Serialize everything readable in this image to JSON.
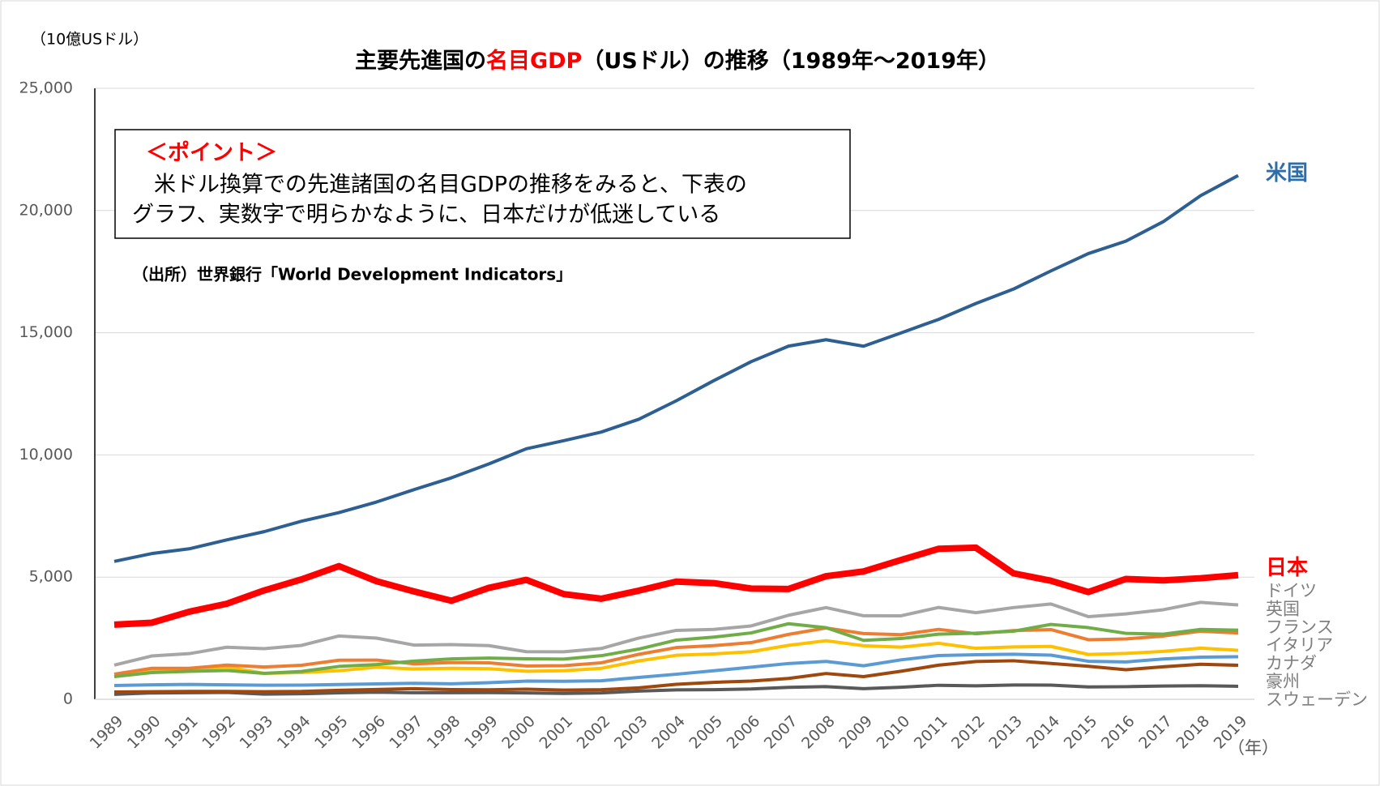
{
  "chart_data": {
    "type": "line",
    "unit_label": "（10億USドル）",
    "title": {
      "before": "主要先進国の",
      "highlight": "名目GDP",
      "after": "（USドル）の推移（1989年～2019年）"
    },
    "annotation": {
      "heading": "＜ポイント＞",
      "lines": [
        "　米ドル換算での先進諸国の名目GDPの推移をみると、下表の",
        "グラフ、実数字で明らかなように、日本だけが低迷している"
      ]
    },
    "source": "（出所）世界銀行「World Development Indicators」",
    "x_unit": "（年）",
    "categories": [
      "1989",
      "1990",
      "1991",
      "1992",
      "1993",
      "1994",
      "1995",
      "1996",
      "1997",
      "1998",
      "1999",
      "2000",
      "2001",
      "2002",
      "2003",
      "2004",
      "2005",
      "2006",
      "2007",
      "2008",
      "2009",
      "2010",
      "2011",
      "2012",
      "2013",
      "2014",
      "2015",
      "2016",
      "2017",
      "2018",
      "2019"
    ],
    "ylim": [
      0,
      25000
    ],
    "yticks": [
      {
        "value": 0,
        "label": "0"
      },
      {
        "value": 5000,
        "label": "5,000"
      },
      {
        "value": 10000,
        "label": "10,000"
      },
      {
        "value": 15000,
        "label": "15,000"
      },
      {
        "value": 20000,
        "label": "20,000"
      },
      {
        "value": 25000,
        "label": "25,000"
      }
    ],
    "grid": true,
    "series": [
      {
        "name": "米国",
        "color": "#2e5f92",
        "label_color": "#2e6ea8",
        "width": 4,
        "values": [
          5642,
          5963,
          6158,
          6520,
          6859,
          7287,
          7640,
          8073,
          8578,
          9063,
          9631,
          10252,
          10582,
          10936,
          11458,
          12214,
          13037,
          13815,
          14452,
          14713,
          14449,
          14992,
          15543,
          16197,
          16785,
          17527,
          18238,
          18745,
          19543,
          20612,
          21433
        ]
      },
      {
        "name": "日本",
        "color": "#ff0000",
        "label_color": "#ff0000",
        "width": 8,
        "values": [
          3054,
          3133,
          3584,
          3909,
          4454,
          4907,
          5449,
          4833,
          4415,
          4033,
          4562,
          4888,
          4304,
          4115,
          4446,
          4815,
          4755,
          4530,
          4515,
          5038,
          5231,
          5700,
          6157,
          6203,
          5156,
          4850,
          4389,
          4923,
          4867,
          4955,
          5082
        ]
      },
      {
        "name": "ドイツ",
        "color": "#a6a6a6",
        "label_color": "#7f7f7f",
        "width": 4,
        "values": [
          1399,
          1772,
          1868,
          2131,
          2071,
          2206,
          2592,
          2504,
          2219,
          2240,
          2197,
          1948,
          1945,
          2079,
          2505,
          2820,
          2861,
          3002,
          3440,
          3752,
          3418,
          3417,
          3758,
          3544,
          3753,
          3899,
          3382,
          3495,
          3665,
          3968,
          3861
        ]
      },
      {
        "name": "英国",
        "color": "#70ad47",
        "label_color": "#7f7f7f",
        "width": 4,
        "values": [
          926,
          1093,
          1142,
          1179,
          1061,
          1140,
          1345,
          1420,
          1564,
          1653,
          1688,
          1658,
          1644,
          1785,
          2055,
          2422,
          2544,
          2717,
          3093,
          2929,
          2412,
          2485,
          2664,
          2707,
          2785,
          3065,
          2933,
          2700,
          2666,
          2861,
          2829
        ]
      },
      {
        "name": "フランス",
        "color": "#ed7d31",
        "label_color": "#7f7f7f",
        "width": 4,
        "values": [
          1030,
          1269,
          1269,
          1401,
          1323,
          1394,
          1601,
          1606,
          1452,
          1503,
          1493,
          1362,
          1377,
          1494,
          1841,
          2116,
          2196,
          2320,
          2657,
          2918,
          2690,
          2643,
          2862,
          2683,
          2811,
          2852,
          2438,
          2471,
          2588,
          2787,
          2716
        ]
      },
      {
        "name": "イタリア",
        "color": "#ffc000",
        "label_color": "#7f7f7f",
        "width": 4,
        "values": [
          927,
          1182,
          1246,
          1323,
          1061,
          1095,
          1171,
          1312,
          1242,
          1270,
          1252,
          1147,
          1167,
          1267,
          1570,
          1801,
          1858,
          1948,
          2210,
          2398,
          2192,
          2134,
          2292,
          2087,
          2141,
          2163,
          1836,
          1877,
          1961,
          2092,
          2004
        ]
      },
      {
        "name": "カナダ",
        "color": "#5b9bd5",
        "label_color": "#7f7f7f",
        "width": 4,
        "values": [
          565,
          593,
          610,
          592,
          577,
          579,
          604,
          628,
          654,
          634,
          678,
          744,
          739,
          760,
          895,
          1026,
          1169,
          1315,
          1465,
          1549,
          1371,
          1614,
          1789,
          1824,
          1843,
          1806,
          1556,
          1528,
          1650,
          1725,
          1742
        ]
      },
      {
        "name": "豪州",
        "color": "#9e480e",
        "label_color": "#7f7f7f",
        "width": 4,
        "values": [
          299,
          311,
          325,
          325,
          312,
          322,
          368,
          401,
          435,
          399,
          389,
          415,
          379,
          395,
          467,
          614,
          694,
          747,
          853,
          1055,
          928,
          1148,
          1397,
          1547,
          1577,
          1468,
          1352,
          1209,
          1331,
          1433,
          1392
        ]
      },
      {
        "name": "スウェーデン",
        "color": "#595959",
        "label_color": "#7f7f7f",
        "width": 4,
        "values": [
          204,
          259,
          271,
          280,
          210,
          226,
          264,
          289,
          268,
          270,
          274,
          262,
          241,
          263,
          334,
          385,
          392,
          423,
          491,
          518,
          436,
          495,
          574,
          553,
          586,
          582,
          505,
          516,
          541,
          556,
          531
        ]
      }
    ]
  }
}
